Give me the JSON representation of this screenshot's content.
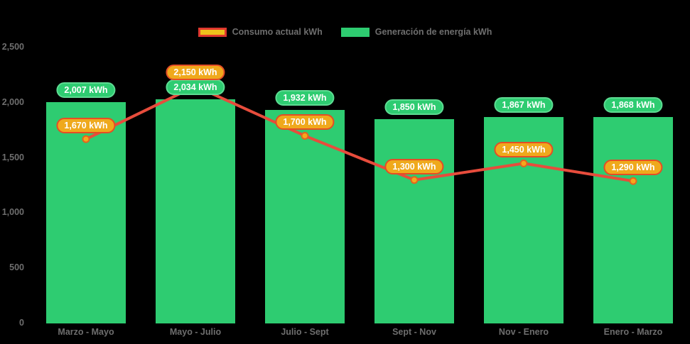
{
  "legend": {
    "items": [
      {
        "id": "consumo",
        "label": "Consumo actual kWh",
        "swatch_fill": "#eec11c",
        "swatch_border": "#e0382e"
      },
      {
        "id": "generacion",
        "label": "Generación de energía kWh",
        "swatch_fill": "#2ecc71",
        "swatch_border": "#2ecc71"
      }
    ]
  },
  "chart_data": {
    "type": "bar+line",
    "title": "",
    "categories": [
      "Marzo - Mayo",
      "Mayo - Julio",
      "Julio - Sept",
      "Sept - Nov",
      "Nov - Enero",
      "Enero - Marzo"
    ],
    "series": [
      {
        "name": "Consumo actual kWh",
        "type": "line",
        "values": [
          1670,
          2150,
          1700,
          1300,
          1450,
          1290
        ],
        "point_labels": [
          "1,670 kWh",
          "2,150 kWh",
          "1,700 kWh",
          "1,300 kWh",
          "1,450 kWh",
          "1,290 kWh"
        ],
        "line_color": "#e74c3c",
        "marker_fill": "#f5a81c",
        "marker_stroke": "#e3641f",
        "label_bg": "#efa91c",
        "label_border": "#e44d26",
        "label_text": "#ffffff"
      },
      {
        "name": "Generación de energía kWh",
        "type": "bar",
        "values": [
          2007,
          2034,
          1932,
          1850,
          1867,
          1868
        ],
        "point_labels": [
          "2,007 kWh",
          "2,034 kWh",
          "1,932 kWh",
          "1,850 kWh",
          "1,867 kWh",
          "1,868 kWh"
        ],
        "bar_color": "#2ecc71",
        "label_bg": "#2ecc71",
        "label_border": "#5ddb92",
        "label_text": "#ffffff"
      }
    ],
    "ylim": [
      0,
      2500
    ],
    "yticks": [
      0,
      500,
      1000,
      1500,
      2000,
      2500
    ],
    "ytick_labels": [
      "0",
      "500",
      "1,000",
      "1,500",
      "2,000",
      "2,500"
    ],
    "grid": false,
    "legend_position": "top-center",
    "background": "#000000",
    "axis_text_color": "#6e6e6e"
  }
}
